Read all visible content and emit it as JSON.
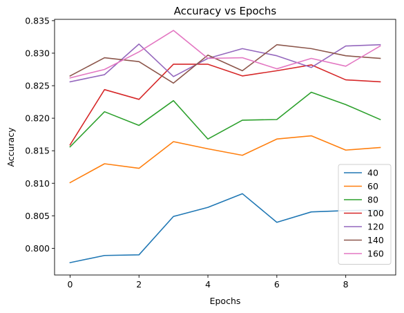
{
  "chart_data": {
    "type": "line",
    "title": "Accuracy vs Epochs",
    "xlabel": "Epochs",
    "ylabel": "Accuracy",
    "x": [
      0,
      1,
      2,
      3,
      4,
      5,
      6,
      7,
      8,
      9
    ],
    "xlim": [
      -0.45,
      9.45
    ],
    "ylim": [
      0.7959,
      0.8352
    ],
    "xticks": [
      0,
      2,
      4,
      6,
      8
    ],
    "yticks": [
      0.8,
      0.805,
      0.81,
      0.815,
      0.82,
      0.825,
      0.83,
      0.835
    ],
    "ytick_labels": [
      "0.800",
      "0.805",
      "0.810",
      "0.815",
      "0.820",
      "0.825",
      "0.830",
      "0.835"
    ],
    "grid": false,
    "legend_position": "lower-right",
    "series": [
      {
        "name": "40",
        "color": "#1f77b4",
        "values": [
          0.7978,
          0.7989,
          0.799,
          0.8049,
          0.8063,
          0.8084,
          0.804,
          0.8056,
          0.8058,
          0.8059
        ]
      },
      {
        "name": "60",
        "color": "#ff7f0e",
        "values": [
          0.8101,
          0.813,
          0.8123,
          0.8164,
          0.8153,
          0.8143,
          0.8168,
          0.8173,
          0.8151,
          0.8155
        ]
      },
      {
        "name": "80",
        "color": "#2ca02c",
        "values": [
          0.8156,
          0.821,
          0.8189,
          0.8227,
          0.8168,
          0.8197,
          0.8198,
          0.824,
          0.8221,
          0.8198
        ]
      },
      {
        "name": "100",
        "color": "#d62728",
        "values": [
          0.8159,
          0.8244,
          0.8229,
          0.8283,
          0.8283,
          0.8265,
          0.8273,
          0.8282,
          0.8259,
          0.8256
        ]
      },
      {
        "name": "120",
        "color": "#9467bd",
        "values": [
          0.8256,
          0.8267,
          0.8314,
          0.8264,
          0.8292,
          0.8307,
          0.8296,
          0.8278,
          0.8311,
          0.8313
        ]
      },
      {
        "name": "140",
        "color": "#8c564b",
        "values": [
          0.8265,
          0.8293,
          0.8287,
          0.8254,
          0.8297,
          0.8273,
          0.8313,
          0.8307,
          0.8296,
          0.8292
        ]
      },
      {
        "name": "160",
        "color": "#e377c2",
        "values": [
          0.8262,
          0.8275,
          0.8302,
          0.8335,
          0.8292,
          0.8293,
          0.8276,
          0.8292,
          0.828,
          0.8311
        ]
      }
    ]
  }
}
